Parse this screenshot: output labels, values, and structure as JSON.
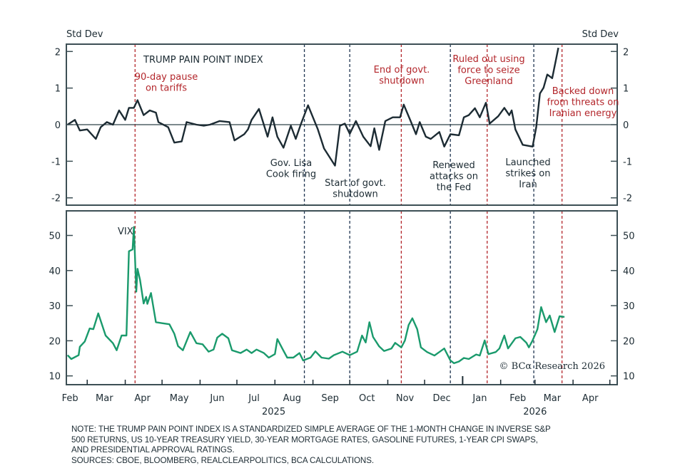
{
  "chart_data": [
    {
      "type": "line",
      "title": "TRUMP PAIN POINT INDEX",
      "ylabel_left": "Std Dev",
      "ylabel_right": "Std Dev",
      "ylim": [
        -2.2,
        2.2
      ],
      "yticks": [
        -2,
        -1,
        0,
        1,
        2
      ],
      "xlim": [
        "2025-02-12",
        "2026-05-07"
      ],
      "zero_line": true,
      "line_color": "#1c2b33",
      "series": [
        {
          "points": [
            [
              "2025-02-13",
              0
            ],
            [
              "2025-02-19",
              0.13
            ],
            [
              "2025-02-23",
              -0.16
            ],
            [
              "2025-03-01",
              -0.13
            ],
            [
              "2025-03-08",
              -0.39
            ],
            [
              "2025-03-12",
              -0.07
            ],
            [
              "2025-03-17",
              0.07
            ],
            [
              "2025-03-22",
              0
            ],
            [
              "2025-03-27",
              0.39
            ],
            [
              "2025-04-01",
              0.13
            ],
            [
              "2025-04-04",
              0.46
            ],
            [
              "2025-04-08",
              0.46
            ],
            [
              "2025-04-11",
              0.67
            ],
            [
              "2025-04-16",
              0.26
            ],
            [
              "2025-04-21",
              0.39
            ],
            [
              "2025-04-26",
              0.33
            ],
            [
              "2025-04-28",
              0.07
            ],
            [
              "2025-05-06",
              -0.07
            ],
            [
              "2025-05-11",
              -0.49
            ],
            [
              "2025-05-17",
              -0.46
            ],
            [
              "2025-05-21",
              0.07
            ],
            [
              "2025-05-29",
              0
            ],
            [
              "2025-06-04",
              -0.03
            ],
            [
              "2025-06-09",
              0
            ],
            [
              "2025-06-17",
              0.1
            ],
            [
              "2025-06-25",
              0.07
            ],
            [
              "2025-06-29",
              -0.43
            ],
            [
              "2025-07-07",
              -0.26
            ],
            [
              "2025-07-10",
              -0.13
            ],
            [
              "2025-07-13",
              0.13
            ],
            [
              "2025-07-19",
              0.43
            ],
            [
              "2025-07-26",
              -0.33
            ],
            [
              "2025-07-30",
              0.2
            ],
            [
              "2025-08-03",
              -0.33
            ],
            [
              "2025-08-08",
              -0.63
            ],
            [
              "2025-08-14",
              -0.03
            ],
            [
              "2025-08-18",
              -0.39
            ],
            [
              "2025-08-22",
              0
            ],
            [
              "2025-08-28",
              0.53
            ],
            [
              "2025-09-05",
              -0.13
            ],
            [
              "2025-09-10",
              -0.65
            ],
            [
              "2025-09-19",
              -1.12
            ],
            [
              "2025-09-23",
              -0.03
            ],
            [
              "2025-09-27",
              0.03
            ],
            [
              "2025-10-01",
              -0.25
            ],
            [
              "2025-10-06",
              0.1
            ],
            [
              "2025-10-12",
              -0.33
            ],
            [
              "2025-10-18",
              -0.59
            ],
            [
              "2025-10-21",
              -0.1
            ],
            [
              "2025-10-25",
              -0.69
            ],
            [
              "2025-10-30",
              0.1
            ],
            [
              "2025-11-05",
              0.2
            ],
            [
              "2025-11-11",
              0.2
            ],
            [
              "2025-11-14",
              0.55
            ],
            [
              "2025-11-20",
              0.07
            ],
            [
              "2025-11-24",
              -0.26
            ],
            [
              "2025-11-27",
              0.07
            ],
            [
              "2025-12-02",
              -0.33
            ],
            [
              "2025-12-06",
              -0.39
            ],
            [
              "2025-12-13",
              -0.2
            ],
            [
              "2025-12-17",
              -0.6
            ],
            [
              "2025-12-22",
              -0.26
            ],
            [
              "2025-12-29",
              -0.29
            ],
            [
              "2026-01-02",
              0.2
            ],
            [
              "2026-01-06",
              0.26
            ],
            [
              "2026-01-11",
              0.45
            ],
            [
              "2026-01-15",
              0.2
            ],
            [
              "2026-01-20",
              0.6
            ],
            [
              "2026-01-23",
              0.03
            ],
            [
              "2026-01-30",
              0.23
            ],
            [
              "2026-02-04",
              0.46
            ],
            [
              "2026-02-08",
              0.26
            ],
            [
              "2026-02-10",
              0.39
            ],
            [
              "2026-02-13",
              -0.13
            ],
            [
              "2026-02-19",
              -0.55
            ],
            [
              "2026-02-27",
              -0.6
            ],
            [
              "2026-03-02",
              -0.07
            ],
            [
              "2026-03-05",
              0.85
            ],
            [
              "2026-03-08",
              1.01
            ],
            [
              "2026-03-11",
              1.37
            ],
            [
              "2026-03-15",
              1.27
            ],
            [
              "2026-03-18",
              1.76
            ],
            [
              "2026-03-20",
              2.1
            ]
          ]
        }
      ]
    },
    {
      "type": "line",
      "title": "VIX",
      "ylim": [
        7.5,
        57
      ],
      "yticks": [
        10,
        20,
        30,
        40,
        50
      ],
      "xlim": [
        "2025-02-12",
        "2026-05-07"
      ],
      "line_color": "#1a9a6c",
      "series": [
        {
          "points": [
            [
              "2025-02-13",
              15.9
            ],
            [
              "2025-02-16",
              14.8
            ],
            [
              "2025-02-22",
              15.9
            ],
            [
              "2025-02-23",
              18.3
            ],
            [
              "2025-02-27",
              19.8
            ],
            [
              "2025-03-03",
              23.5
            ],
            [
              "2025-03-06",
              23.3
            ],
            [
              "2025-03-10",
              27.8
            ],
            [
              "2025-03-16",
              21.5
            ],
            [
              "2025-03-22",
              19.3
            ],
            [
              "2025-03-25",
              17.3
            ],
            [
              "2025-03-29",
              21.5
            ],
            [
              "2025-04-02",
              21.5
            ],
            [
              "2025-04-04",
              45.5
            ],
            [
              "2025-04-07",
              46
            ],
            [
              "2025-04-08",
              52.4
            ],
            [
              "2025-04-10",
              34
            ],
            [
              "2025-04-11",
              40.5
            ],
            [
              "2025-04-13",
              37.4
            ],
            [
              "2025-04-16",
              30.6
            ],
            [
              "2025-04-18",
              32.5
            ],
            [
              "2025-04-19",
              30.5
            ],
            [
              "2025-04-22",
              33.6
            ],
            [
              "2025-04-26",
              25.3
            ],
            [
              "2025-05-01",
              25
            ],
            [
              "2025-05-07",
              24.7
            ],
            [
              "2025-05-11",
              22
            ],
            [
              "2025-05-14",
              18.5
            ],
            [
              "2025-05-18",
              17.3
            ],
            [
              "2025-05-24",
              22.5
            ],
            [
              "2025-05-29",
              19.3
            ],
            [
              "2025-06-03",
              19
            ],
            [
              "2025-06-08",
              16.9
            ],
            [
              "2025-06-12",
              17.5
            ],
            [
              "2025-06-15",
              20.9
            ],
            [
              "2025-06-19",
              22
            ],
            [
              "2025-06-24",
              20.7
            ],
            [
              "2025-06-27",
              17.3
            ],
            [
              "2025-07-04",
              16.5
            ],
            [
              "2025-07-09",
              17.5
            ],
            [
              "2025-07-13",
              16.5
            ],
            [
              "2025-07-17",
              17.5
            ],
            [
              "2025-07-23",
              16.5
            ],
            [
              "2025-07-27",
              15.2
            ],
            [
              "2025-08-01",
              16.2
            ],
            [
              "2025-08-03",
              20.5
            ],
            [
              "2025-08-07",
              17.8
            ],
            [
              "2025-08-11",
              15.2
            ],
            [
              "2025-08-16",
              15.2
            ],
            [
              "2025-08-21",
              16.5
            ],
            [
              "2025-08-24",
              14.4
            ],
            [
              "2025-08-30",
              15.2
            ],
            [
              "2025-09-03",
              17
            ],
            [
              "2025-09-08",
              15.2
            ],
            [
              "2025-09-14",
              14.9
            ],
            [
              "2025-09-18",
              15.9
            ],
            [
              "2025-09-25",
              16.9
            ],
            [
              "2025-10-01",
              15.9
            ],
            [
              "2025-10-07",
              16.9
            ],
            [
              "2025-10-11",
              21.5
            ],
            [
              "2025-10-14",
              19.5
            ],
            [
              "2025-10-17",
              25.3
            ],
            [
              "2025-10-20",
              21.1
            ],
            [
              "2025-10-25",
              18.4
            ],
            [
              "2025-10-29",
              17.1
            ],
            [
              "2025-11-04",
              17.8
            ],
            [
              "2025-11-07",
              19.4
            ],
            [
              "2025-11-12",
              18.1
            ],
            [
              "2025-11-15",
              20.1
            ],
            [
              "2025-11-18",
              24.5
            ],
            [
              "2025-11-21",
              26.4
            ],
            [
              "2025-11-25",
              23.3
            ],
            [
              "2025-11-28",
              18.1
            ],
            [
              "2025-12-03",
              16.8
            ],
            [
              "2025-12-09",
              15.8
            ],
            [
              "2025-12-13",
              16.8
            ],
            [
              "2025-12-17",
              17.8
            ],
            [
              "2025-12-22",
              14.4
            ],
            [
              "2025-12-25",
              13.6
            ],
            [
              "2025-12-29",
              14.1
            ],
            [
              "2026-01-02",
              15.1
            ],
            [
              "2026-01-06",
              14.8
            ],
            [
              "2026-01-12",
              16.1
            ],
            [
              "2026-01-15",
              15.8
            ],
            [
              "2026-01-19",
              20.1
            ],
            [
              "2026-01-22",
              16.2
            ],
            [
              "2026-01-28",
              16.8
            ],
            [
              "2026-01-31",
              17.8
            ],
            [
              "2026-02-04",
              21.5
            ],
            [
              "2026-02-07",
              17.8
            ],
            [
              "2026-02-13",
              20.7
            ],
            [
              "2026-02-17",
              21.1
            ],
            [
              "2026-02-22",
              19.4
            ],
            [
              "2026-02-24",
              18.1
            ],
            [
              "2026-02-27",
              20.1
            ],
            [
              "2026-03-03",
              23.3
            ],
            [
              "2026-03-06",
              29.6
            ],
            [
              "2026-03-10",
              25.3
            ],
            [
              "2026-03-13",
              27.2
            ],
            [
              "2026-03-17",
              22.5
            ],
            [
              "2026-03-21",
              27
            ],
            [
              "2026-03-25",
              26.8
            ]
          ]
        }
      ]
    }
  ],
  "x_axis": {
    "month_labels": [
      [
        "2025-02-15",
        "Feb"
      ],
      [
        "2025-03-15",
        "Mar"
      ],
      [
        "2025-04-15",
        "Apr"
      ],
      [
        "2025-05-15",
        "May"
      ],
      [
        "2025-06-15",
        "Jun"
      ],
      [
        "2025-07-15",
        "Jul"
      ],
      [
        "2025-08-15",
        "Aug"
      ],
      [
        "2025-09-15",
        "Sep"
      ],
      [
        "2025-10-15",
        "Oct"
      ],
      [
        "2025-11-15",
        "Nov"
      ],
      [
        "2025-12-15",
        "Dec"
      ],
      [
        "2026-01-15",
        "Jan"
      ],
      [
        "2026-02-15",
        "Feb"
      ],
      [
        "2026-03-15",
        "Mar"
      ],
      [
        "2026-04-15",
        "Apr"
      ]
    ],
    "year_labels": [
      [
        "2025-07-31",
        "2025"
      ],
      [
        "2026-03-01",
        "2026"
      ]
    ]
  },
  "events": [
    {
      "date": "2025-04-09",
      "color": "#b3262b",
      "lines": [
        "90-day pause",
        "on tariffs"
      ]
    },
    {
      "date": "2025-08-25",
      "color": "#1f3550",
      "lines": [
        "Gov. Lisa",
        "Cook firing"
      ]
    },
    {
      "date": "2025-10-01",
      "color": "#1f3550",
      "lines": [
        "Start of govt.",
        "shutdown"
      ]
    },
    {
      "date": "2025-11-12",
      "color": "#b3262b",
      "lines": [
        "End of govt.",
        "shutdown"
      ]
    },
    {
      "date": "2025-12-22",
      "color": "#1f3550",
      "lines": [
        "Renewed",
        "attacks on",
        "the Fed"
      ]
    },
    {
      "date": "2026-01-21",
      "color": "#b3262b",
      "lines": [
        "Ruled out using",
        "force to seize",
        "Greenland"
      ]
    },
    {
      "date": "2026-02-28",
      "color": "#1f3550",
      "lines": [
        "Launched",
        "strikes on",
        "Iran"
      ]
    },
    {
      "date": "2026-03-23",
      "color": "#b3262b",
      "lines": [
        "Backed down",
        "from threats on",
        "Iranian energy"
      ]
    }
  ],
  "copyright": "© BCα Research 2026",
  "footer": {
    "note_lines": [
      "NOTE: THE TRUMP PAIN POINT INDEX IS A STANDARDIZED SIMPLE AVERAGE OF THE 1-MONTH CHANGE IN INVERSE S&P",
      "500 RETURNS, US 10-YEAR TREASURY YIELD, 30-YEAR MORTGAGE RATES, GASOLINE FUTURES, 1-YEAR CPI SWAPS,",
      "AND PRESIDENTIAL APPROVAL RATINGS."
    ],
    "sources": "SOURCES: CBOE, BLOOMBERG, REALCLEARPOLITICS, BCA CALCULATIONS."
  },
  "colors": {
    "frame": "#3d4f55",
    "text": "#1c2b33",
    "event_red": "#b3262b",
    "event_navy": "#1f3550",
    "vix": "#1a9a6c"
  }
}
